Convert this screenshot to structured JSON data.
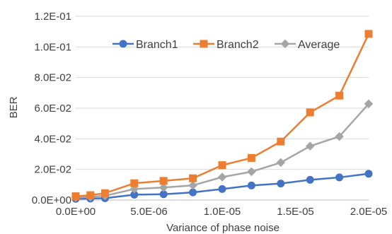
{
  "chart_data": {
    "type": "line",
    "title": "",
    "xlabel": "Variance of phase noise",
    "ylabel": "BER",
    "xlim": [
      0,
      2e-05
    ],
    "ylim": [
      0,
      0.12
    ],
    "x_ticks": [
      0,
      5e-06,
      1e-05,
      1.5e-05,
      2e-05
    ],
    "x_tick_labels": [
      "0.0E+00",
      "5.0E-06",
      "1.0E-05",
      "1.5E-05",
      "2.0E-05"
    ],
    "y_ticks": [
      0,
      0.02,
      0.04,
      0.06,
      0.08,
      0.1,
      0.12
    ],
    "y_tick_labels": [
      "0.0E+00",
      "2.0E-02",
      "4.0E-02",
      "6.0E-02",
      "8.0E-02",
      "1.0E-01",
      "1.2E-01"
    ],
    "grid": "horizontal",
    "legend_position": "top",
    "x": [
      0,
      1e-06,
      2e-06,
      4e-06,
      6e-06,
      8e-06,
      1e-05,
      1.2e-05,
      1.4e-05,
      1.6e-05,
      1.8e-05,
      2e-05
    ],
    "series": [
      {
        "name": "Branch1",
        "marker": "circle",
        "color": "#4472C4",
        "values": [
          0.0008,
          0.001,
          0.0012,
          0.0035,
          0.0038,
          0.005,
          0.0072,
          0.0095,
          0.0108,
          0.0132,
          0.0148,
          0.0172
        ]
      },
      {
        "name": "Branch2",
        "marker": "square",
        "color": "#ED7D31",
        "values": [
          0.0025,
          0.0032,
          0.0045,
          0.011,
          0.0125,
          0.0142,
          0.0228,
          0.0275,
          0.0382,
          0.0572,
          0.0682,
          0.1085
        ]
      },
      {
        "name": "Average",
        "marker": "diamond",
        "color": "#A5A5A5",
        "values": [
          0.0016,
          0.0021,
          0.0028,
          0.0072,
          0.0082,
          0.0096,
          0.015,
          0.0185,
          0.0245,
          0.0352,
          0.0415,
          0.0628
        ]
      }
    ]
  }
}
